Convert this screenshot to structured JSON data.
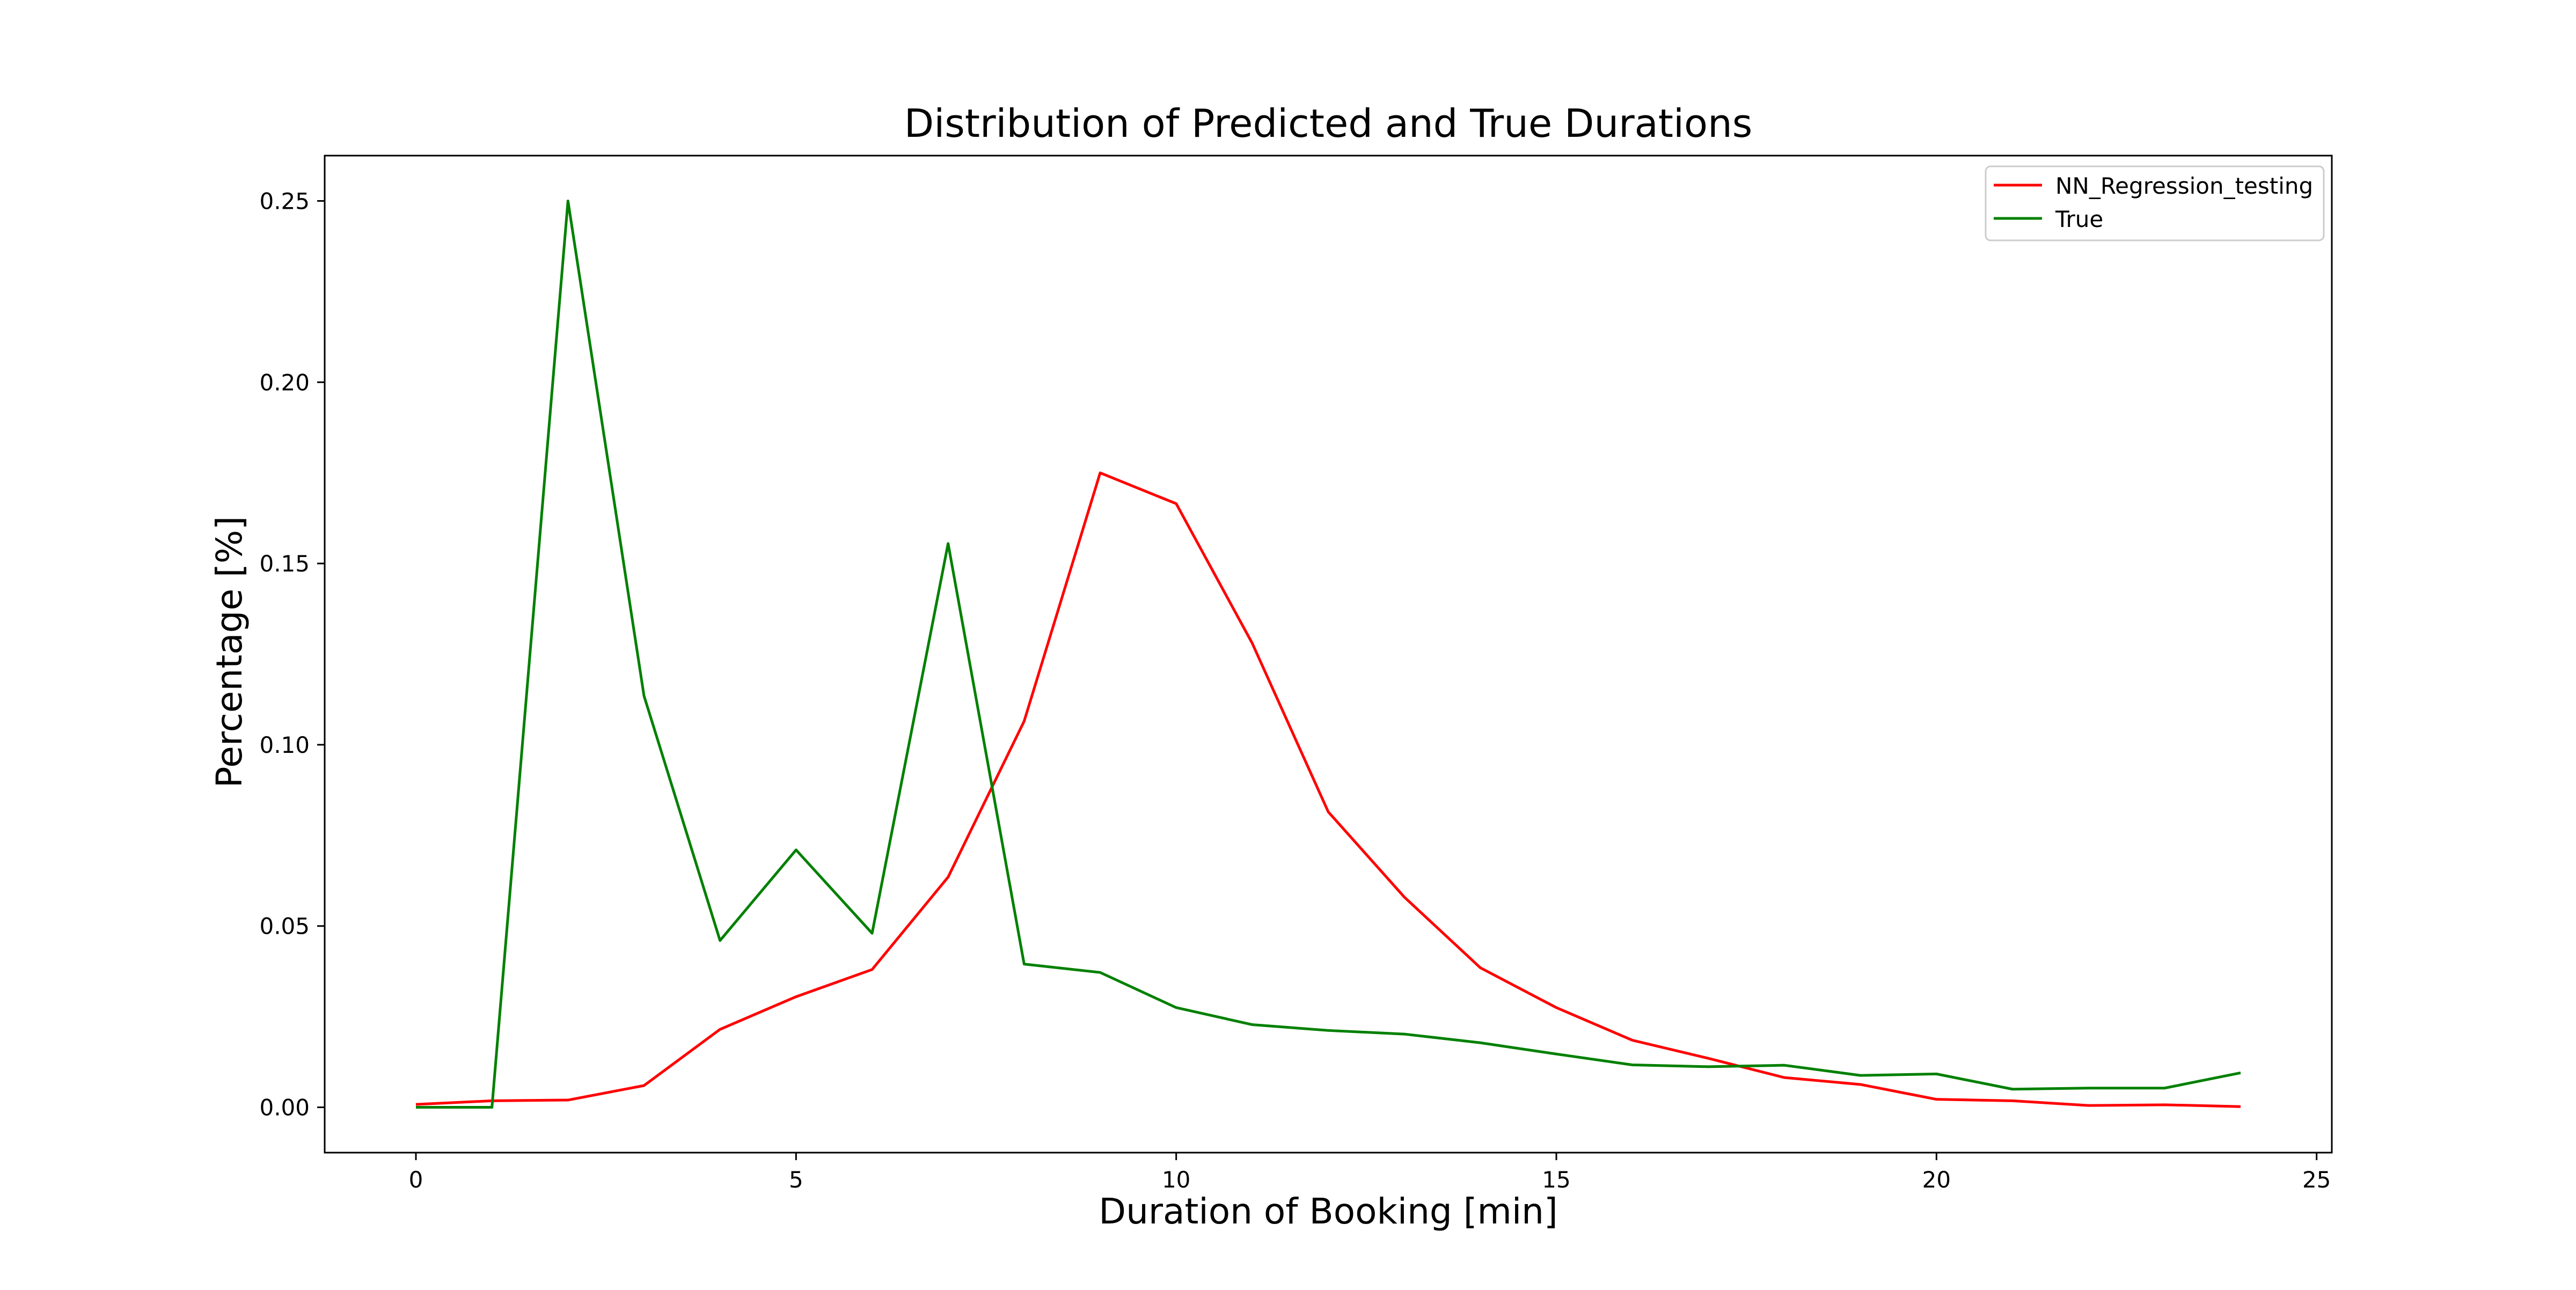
{
  "chart_data": {
    "type": "line",
    "title": "Distribution of Predicted and True Durations",
    "xlabel": "Duration of Booking [min]",
    "ylabel": "Percentage [%]",
    "xlim": [
      -1.2,
      25.2
    ],
    "ylim": [
      -0.0125,
      0.2625
    ],
    "xticks": [
      0,
      5,
      10,
      15,
      20,
      25
    ],
    "yticks": [
      0.0,
      0.05,
      0.1,
      0.15,
      0.2,
      0.25
    ],
    "xtick_labels": [
      "0",
      "5",
      "10",
      "15",
      "20",
      "25"
    ],
    "ytick_labels": [
      "0.00",
      "0.05",
      "0.10",
      "0.15",
      "0.20",
      "0.25"
    ],
    "grid": false,
    "legend_position": "top-right",
    "x": [
      0,
      1,
      2,
      3,
      4,
      5,
      6,
      7,
      8,
      9,
      10,
      11,
      12,
      13,
      14,
      15,
      16,
      17,
      18,
      19,
      20,
      21,
      22,
      23,
      24
    ],
    "series": [
      {
        "name": "NN_Regression_testing",
        "color": "#ff0000",
        "values": [
          0.0008,
          0.0018,
          0.002,
          0.006,
          0.0215,
          0.0305,
          0.038,
          0.0635,
          0.1065,
          0.175,
          0.1665,
          0.128,
          0.0815,
          0.058,
          0.0385,
          0.0275,
          0.0185,
          0.0135,
          0.0082,
          0.0063,
          0.0022,
          0.0018,
          0.0005,
          0.0007,
          0.0002
        ]
      },
      {
        "name": "True",
        "color": "#008000",
        "values": [
          0.0,
          0.0,
          0.25,
          0.1135,
          0.046,
          0.071,
          0.048,
          0.1555,
          0.0395,
          0.0372,
          0.0275,
          0.0228,
          0.0212,
          0.0202,
          0.0178,
          0.0147,
          0.0117,
          0.0112,
          0.0116,
          0.0088,
          0.0092,
          0.005,
          0.0053,
          0.0053,
          0.0095
        ]
      }
    ]
  }
}
